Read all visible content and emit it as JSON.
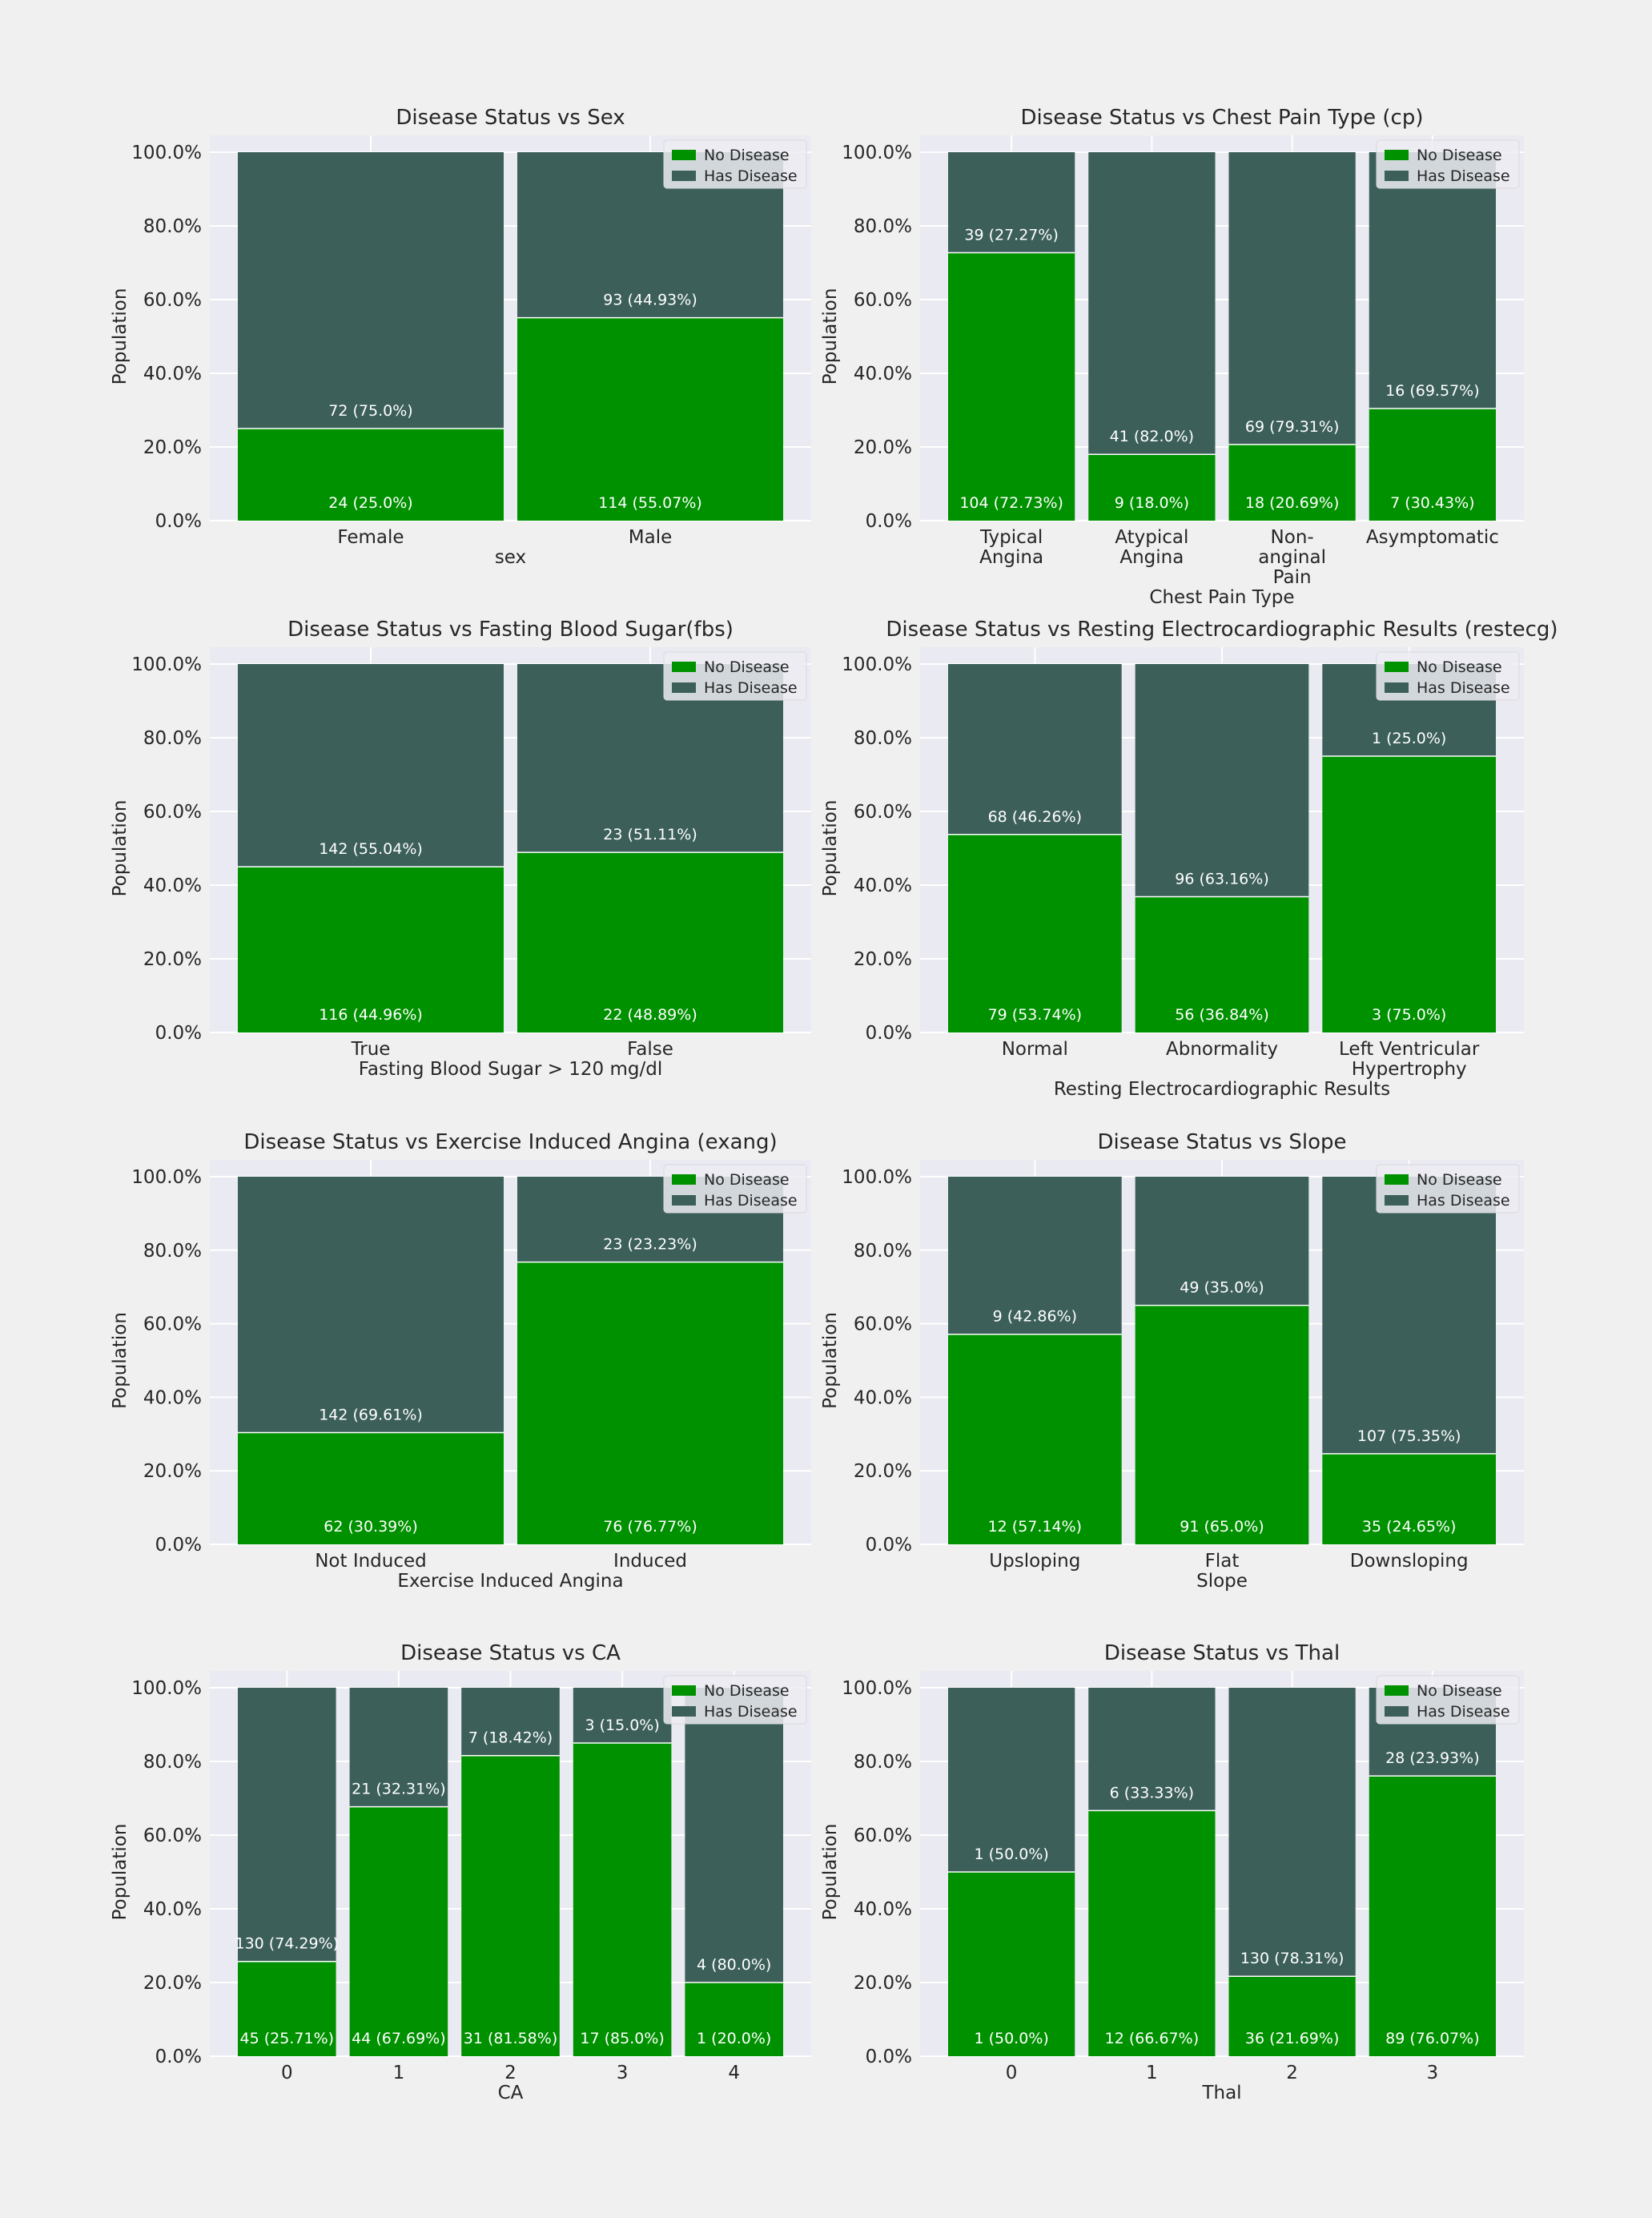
{
  "colors": {
    "no_disease": "#009100",
    "has_disease": "#3c5f5a",
    "plot_bg": "#eaeaf2",
    "grid": "#ffffff",
    "figure_bg": "#f0f0f0",
    "label_text": "#ffffff"
  },
  "legend": {
    "placement": "upper-right",
    "entries": [
      "No Disease",
      "Has Disease"
    ]
  },
  "chart_data": [
    {
      "type": "bar",
      "stacked": true,
      "normalized": true,
      "title": "Disease Status vs Sex",
      "xlabel": "sex",
      "ylabel": "Population",
      "ylim": [
        0,
        100
      ],
      "y_ticks": [
        "0.0%",
        "20.0%",
        "40.0%",
        "60.0%",
        "80.0%",
        "100.0%"
      ],
      "grid": true,
      "legend": "upper-right",
      "categories": [
        "Female",
        "Male"
      ],
      "series": [
        {
          "name": "No Disease",
          "values": [
            25.0,
            55.07
          ],
          "labels": [
            "24 (25.0%)",
            "114 (55.07%)"
          ]
        },
        {
          "name": "Has Disease",
          "values": [
            75.0,
            44.93
          ],
          "labels": [
            "72 (75.0%)",
            "93 (44.93%)"
          ]
        }
      ]
    },
    {
      "type": "bar",
      "stacked": true,
      "normalized": true,
      "title": "Disease Status vs Chest Pain Type (cp)",
      "xlabel": "Chest Pain Type",
      "ylabel": "Population",
      "ylim": [
        0,
        100
      ],
      "y_ticks": [
        "0.0%",
        "20.0%",
        "40.0%",
        "60.0%",
        "80.0%",
        "100.0%"
      ],
      "grid": true,
      "legend": "upper-right",
      "categories": [
        "Typical\nAngina",
        "Atypical\nAngina",
        "Non-\nanginal\nPain",
        "Asymptomatic"
      ],
      "series": [
        {
          "name": "No Disease",
          "values": [
            72.73,
            18.0,
            20.69,
            30.43
          ],
          "labels": [
            "104 (72.73%)",
            "9 (18.0%)",
            "18 (20.69%)",
            "7 (30.43%)"
          ]
        },
        {
          "name": "Has Disease",
          "values": [
            27.27,
            82.0,
            79.31,
            69.57
          ],
          "labels": [
            "39 (27.27%)",
            "41 (82.0%)",
            "69 (79.31%)",
            "16 (69.57%)"
          ]
        }
      ]
    },
    {
      "type": "bar",
      "stacked": true,
      "normalized": true,
      "title": "Disease Status vs Fasting Blood Sugar(fbs)",
      "xlabel": "Fasting Blood Sugar > 120 mg/dl",
      "ylabel": "Population",
      "ylim": [
        0,
        100
      ],
      "y_ticks": [
        "0.0%",
        "20.0%",
        "40.0%",
        "60.0%",
        "80.0%",
        "100.0%"
      ],
      "grid": true,
      "legend": "upper-right",
      "categories": [
        "True",
        "False"
      ],
      "series": [
        {
          "name": "No Disease",
          "values": [
            44.96,
            48.89
          ],
          "labels": [
            "116 (44.96%)",
            "22 (48.89%)"
          ]
        },
        {
          "name": "Has Disease",
          "values": [
            55.04,
            51.11
          ],
          "labels": [
            "142 (55.04%)",
            "23 (51.11%)"
          ]
        }
      ]
    },
    {
      "type": "bar",
      "stacked": true,
      "normalized": true,
      "title": "Disease Status vs Resting Electrocardiographic Results (restecg)",
      "xlabel": "Resting Electrocardiographic Results",
      "ylabel": "Population",
      "ylim": [
        0,
        100
      ],
      "y_ticks": [
        "0.0%",
        "20.0%",
        "40.0%",
        "60.0%",
        "80.0%",
        "100.0%"
      ],
      "grid": true,
      "legend": "upper-right",
      "categories": [
        "Normal",
        "Abnormality",
        "Left Ventricular\nHypertrophy"
      ],
      "series": [
        {
          "name": "No Disease",
          "values": [
            53.74,
            36.84,
            75.0
          ],
          "labels": [
            "79 (53.74%)",
            "56 (36.84%)",
            "3 (75.0%)"
          ]
        },
        {
          "name": "Has Disease",
          "values": [
            46.26,
            63.16,
            25.0
          ],
          "labels": [
            "68 (46.26%)",
            "96 (63.16%)",
            "1 (25.0%)"
          ]
        }
      ]
    },
    {
      "type": "bar",
      "stacked": true,
      "normalized": true,
      "title": "Disease Status vs Exercise Induced Angina (exang)",
      "xlabel": "Exercise Induced Angina",
      "ylabel": "Population",
      "ylim": [
        0,
        100
      ],
      "y_ticks": [
        "0.0%",
        "20.0%",
        "40.0%",
        "60.0%",
        "80.0%",
        "100.0%"
      ],
      "grid": true,
      "legend": "upper-right",
      "categories": [
        "Not Induced",
        "Induced"
      ],
      "series": [
        {
          "name": "No Disease",
          "values": [
            30.39,
            76.77
          ],
          "labels": [
            "62 (30.39%)",
            "76 (76.77%)"
          ]
        },
        {
          "name": "Has Disease",
          "values": [
            69.61,
            23.23
          ],
          "labels": [
            "142 (69.61%)",
            "23 (23.23%)"
          ]
        }
      ]
    },
    {
      "type": "bar",
      "stacked": true,
      "normalized": true,
      "title": "Disease Status vs Slope",
      "xlabel": "Slope",
      "ylabel": "Population",
      "ylim": [
        0,
        100
      ],
      "y_ticks": [
        "0.0%",
        "20.0%",
        "40.0%",
        "60.0%",
        "80.0%",
        "100.0%"
      ],
      "grid": true,
      "legend": "upper-right",
      "categories": [
        "Upsloping",
        "Flat",
        "Downsloping"
      ],
      "series": [
        {
          "name": "No Disease",
          "values": [
            57.14,
            65.0,
            24.65
          ],
          "labels": [
            "12 (57.14%)",
            "91 (65.0%)",
            "35 (24.65%)"
          ]
        },
        {
          "name": "Has Disease",
          "values": [
            42.86,
            35.0,
            75.35
          ],
          "labels": [
            "9 (42.86%)",
            "49 (35.0%)",
            "107 (75.35%)"
          ]
        }
      ]
    },
    {
      "type": "bar",
      "stacked": true,
      "normalized": true,
      "title": "Disease Status vs CA",
      "xlabel": "CA",
      "ylabel": "Population",
      "ylim": [
        0,
        100
      ],
      "y_ticks": [
        "0.0%",
        "20.0%",
        "40.0%",
        "60.0%",
        "80.0%",
        "100.0%"
      ],
      "grid": true,
      "legend": "upper-right",
      "categories": [
        "0",
        "1",
        "2",
        "3",
        "4"
      ],
      "series": [
        {
          "name": "No Disease",
          "values": [
            25.71,
            67.69,
            81.58,
            85.0,
            20.0
          ],
          "labels": [
            "45 (25.71%)",
            "44 (67.69%)",
            "31 (81.58%)",
            "17 (85.0%)",
            "1 (20.0%)"
          ]
        },
        {
          "name": "Has Disease",
          "values": [
            74.29,
            32.31,
            18.42,
            15.0,
            80.0
          ],
          "labels": [
            "130 (74.29%)",
            "21 (32.31%)",
            "7 (18.42%)",
            "3 (15.0%)",
            "4 (80.0%)"
          ]
        }
      ]
    },
    {
      "type": "bar",
      "stacked": true,
      "normalized": true,
      "title": "Disease Status vs Thal",
      "xlabel": "Thal",
      "ylabel": "Population",
      "ylim": [
        0,
        100
      ],
      "y_ticks": [
        "0.0%",
        "20.0%",
        "40.0%",
        "60.0%",
        "80.0%",
        "100.0%"
      ],
      "grid": true,
      "legend": "upper-right",
      "categories": [
        "0",
        "1",
        "2",
        "3"
      ],
      "series": [
        {
          "name": "No Disease",
          "values": [
            50.0,
            66.67,
            21.69,
            76.07
          ],
          "labels": [
            "1 (50.0%)",
            "12 (66.67%)",
            "36 (21.69%)",
            "89 (76.07%)"
          ]
        },
        {
          "name": "Has Disease",
          "values": [
            50.0,
            33.33,
            78.31,
            23.93
          ],
          "labels": [
            "1 (50.0%)",
            "6 (33.33%)",
            "130 (78.31%)",
            "28 (23.93%)"
          ]
        }
      ]
    }
  ]
}
